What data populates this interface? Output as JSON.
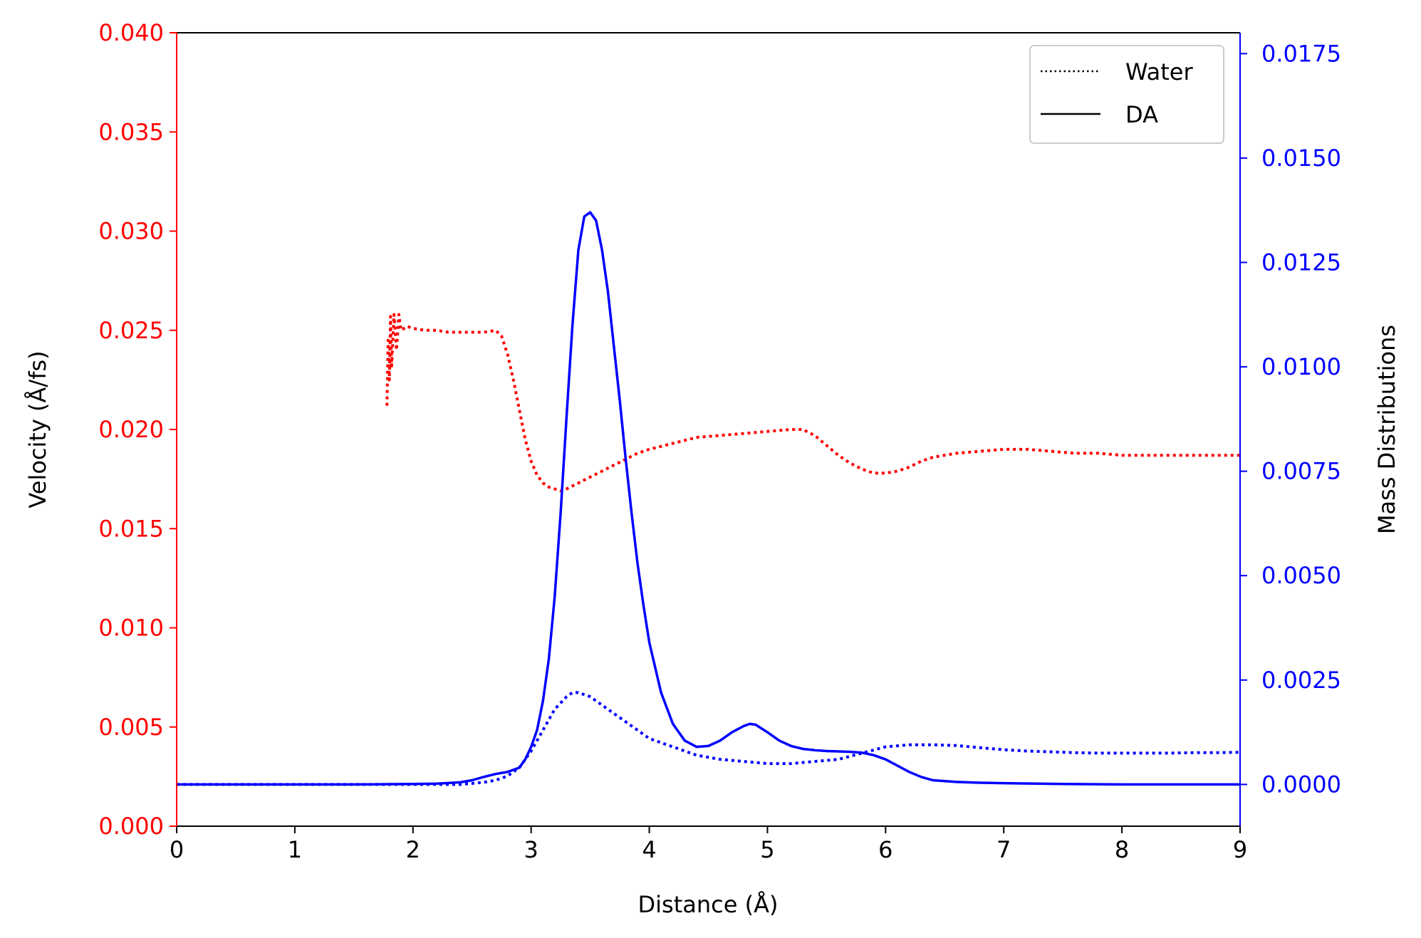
{
  "chart_data": {
    "type": "line",
    "x_axis": {
      "label": "Distance (Å)",
      "range": [
        0,
        9
      ],
      "ticks": [
        0,
        1,
        2,
        3,
        4,
        5,
        6,
        7,
        8,
        9
      ],
      "tick_labels": [
        "0",
        "1",
        "2",
        "3",
        "4",
        "5",
        "6",
        "7",
        "8",
        "9"
      ]
    },
    "y_left": {
      "label": "Velocity (Å/fs)",
      "range": [
        0,
        0.04
      ],
      "ticks": [
        0,
        0.005,
        0.01,
        0.015,
        0.02,
        0.025,
        0.03,
        0.035,
        0.04
      ],
      "tick_labels": [
        "0.000",
        "0.005",
        "0.010",
        "0.015",
        "0.020",
        "0.025",
        "0.030",
        "0.035",
        "0.040"
      ],
      "color": "#ff0000"
    },
    "y_right": {
      "label": "Mass Distributions",
      "range": [
        -0.001,
        0.018
      ],
      "ticks": [
        0,
        0.0025,
        0.005,
        0.0075,
        0.01,
        0.0125,
        0.015,
        0.0175
      ],
      "tick_labels": [
        "0.0000",
        "0.0025",
        "0.0050",
        "0.0075",
        "0.0100",
        "0.0125",
        "0.0150",
        "0.0175"
      ],
      "color": "#0000ff"
    },
    "legend": {
      "position": "top-right",
      "entries": [
        {
          "label": "Water",
          "style": "dotted"
        },
        {
          "label": "DA",
          "style": "solid"
        }
      ]
    },
    "series": [
      {
        "axis": "left",
        "style": "dotted",
        "color": "#ff0000",
        "x": [
          1.78,
          1.79,
          1.8,
          1.81,
          1.82,
          1.84,
          1.86,
          1.88,
          1.9,
          1.95,
          2.0,
          2.1,
          2.2,
          2.3,
          2.4,
          2.5,
          2.6,
          2.7,
          2.75,
          2.8,
          2.85,
          2.9,
          2.95,
          3.0,
          3.05,
          3.1,
          3.15,
          3.2,
          3.25,
          3.3,
          3.4,
          3.5,
          3.6,
          3.7,
          3.8,
          3.9,
          4.0,
          4.2,
          4.4,
          4.6,
          4.8,
          5.0,
          5.2,
          5.3,
          5.4,
          5.5,
          5.6,
          5.7,
          5.8,
          5.9,
          6.0,
          6.1,
          6.2,
          6.3,
          6.4,
          6.6,
          6.8,
          7.0,
          7.2,
          7.4,
          7.6,
          7.8,
          8.0,
          8.2,
          8.4,
          8.6,
          8.8,
          9.0
        ],
        "y": [
          0.0212,
          0.0245,
          0.0225,
          0.0257,
          0.0232,
          0.0258,
          0.024,
          0.0258,
          0.025,
          0.0252,
          0.0251,
          0.025,
          0.025,
          0.0249,
          0.0249,
          0.0249,
          0.0249,
          0.025,
          0.0247,
          0.0238,
          0.0225,
          0.021,
          0.0195,
          0.0184,
          0.0177,
          0.0173,
          0.0171,
          0.017,
          0.0169,
          0.017,
          0.0173,
          0.0176,
          0.0179,
          0.0182,
          0.0185,
          0.0188,
          0.019,
          0.0193,
          0.0196,
          0.0197,
          0.0198,
          0.0199,
          0.02,
          0.02,
          0.0197,
          0.0192,
          0.0187,
          0.0183,
          0.018,
          0.0178,
          0.0178,
          0.0179,
          0.0181,
          0.0184,
          0.0186,
          0.0188,
          0.0189,
          0.019,
          0.019,
          0.0189,
          0.0188,
          0.0188,
          0.0187,
          0.0187,
          0.0187,
          0.0187,
          0.0187,
          0.0187
        ]
      },
      {
        "axis": "right",
        "style": "dotted",
        "color": "#0000ff",
        "x": [
          0,
          0.5,
          1.0,
          1.5,
          2.0,
          2.4,
          2.6,
          2.7,
          2.8,
          2.9,
          3.0,
          3.1,
          3.2,
          3.3,
          3.35,
          3.4,
          3.5,
          3.6,
          3.7,
          3.8,
          3.9,
          4.0,
          4.2,
          4.4,
          4.6,
          4.8,
          5.0,
          5.2,
          5.4,
          5.6,
          5.8,
          6.0,
          6.2,
          6.4,
          6.6,
          6.8,
          7.0,
          7.2,
          7.4,
          7.6,
          7.8,
          8.0,
          8.2,
          8.4,
          8.6,
          8.8,
          9.0
        ],
        "y": [
          0.0,
          0.0,
          0.0,
          0.0,
          0.0,
          0.0,
          5e-05,
          0.0001,
          0.0002,
          0.0004,
          0.0008,
          0.0013,
          0.0018,
          0.0021,
          0.0022,
          0.0022,
          0.0021,
          0.0019,
          0.0017,
          0.0015,
          0.0013,
          0.0011,
          0.0009,
          0.0007,
          0.0006,
          0.00055,
          0.0005,
          0.0005,
          0.00055,
          0.0006,
          0.00075,
          0.0009,
          0.00095,
          0.00095,
          0.00093,
          0.00088,
          0.00083,
          0.0008,
          0.00078,
          0.00076,
          0.00075,
          0.00075,
          0.00075,
          0.00075,
          0.00076,
          0.00076,
          0.00077
        ]
      },
      {
        "axis": "right",
        "style": "solid",
        "color": "#0000ff",
        "x": [
          0,
          0.5,
          1.0,
          1.5,
          2.0,
          2.2,
          2.4,
          2.5,
          2.6,
          2.7,
          2.8,
          2.9,
          2.95,
          3.0,
          3.05,
          3.1,
          3.15,
          3.2,
          3.25,
          3.3,
          3.35,
          3.4,
          3.45,
          3.5,
          3.55,
          3.6,
          3.65,
          3.7,
          3.75,
          3.8,
          3.85,
          3.9,
          3.95,
          4.0,
          4.1,
          4.2,
          4.3,
          4.4,
          4.5,
          4.6,
          4.7,
          4.8,
          4.85,
          4.9,
          5.0,
          5.1,
          5.2,
          5.3,
          5.4,
          5.5,
          5.6,
          5.7,
          5.8,
          5.9,
          6.0,
          6.1,
          6.2,
          6.3,
          6.4,
          6.6,
          6.8,
          7.0,
          7.5,
          8.0,
          8.5,
          9.0
        ],
        "y": [
          0.0,
          0.0,
          0.0,
          0.0,
          1e-05,
          2e-05,
          5e-05,
          0.0001,
          0.00018,
          0.00025,
          0.0003,
          0.0004,
          0.0006,
          0.0009,
          0.0013,
          0.002,
          0.003,
          0.0045,
          0.0065,
          0.0088,
          0.011,
          0.0128,
          0.0136,
          0.0137,
          0.0135,
          0.0128,
          0.0118,
          0.0105,
          0.0092,
          0.0078,
          0.0065,
          0.0053,
          0.0043,
          0.0034,
          0.0022,
          0.00145,
          0.00105,
          0.0009,
          0.00092,
          0.00105,
          0.00125,
          0.0014,
          0.00145,
          0.00143,
          0.00125,
          0.00105,
          0.00092,
          0.00085,
          0.00082,
          0.0008,
          0.00079,
          0.00078,
          0.00076,
          0.0007,
          0.0006,
          0.00045,
          0.0003,
          0.00018,
          0.0001,
          6e-05,
          4e-05,
          3e-05,
          1e-05,
          0.0,
          0.0,
          0.0
        ]
      }
    ]
  }
}
